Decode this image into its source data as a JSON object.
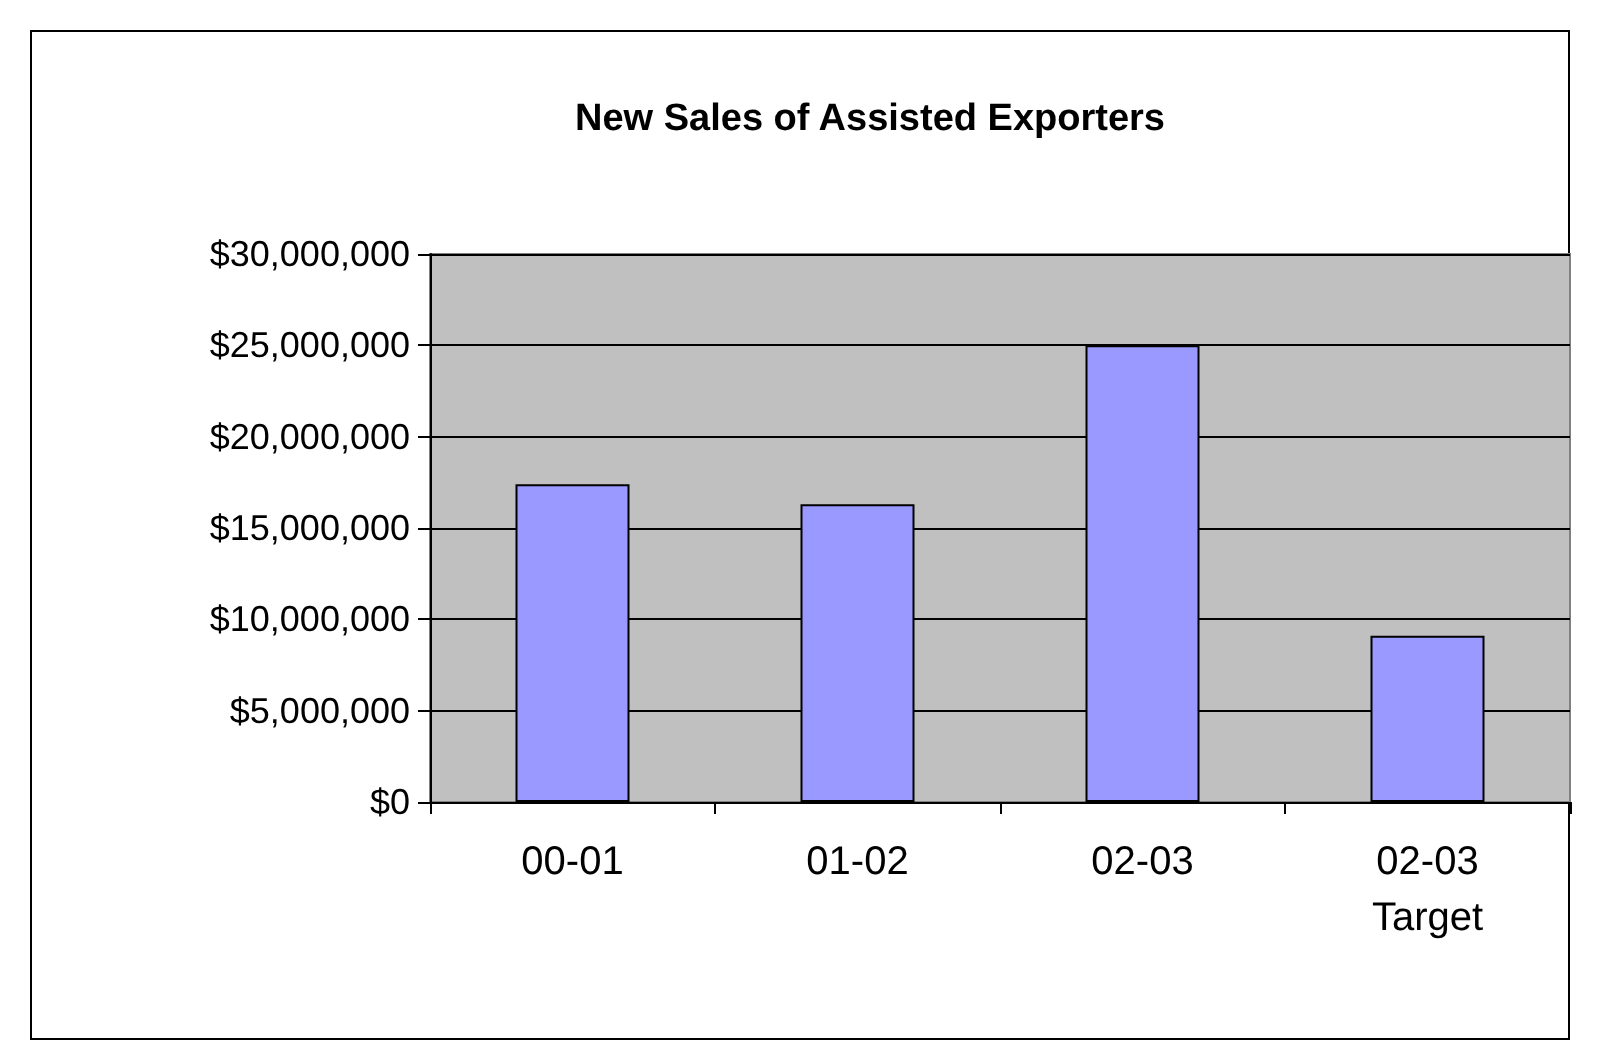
{
  "chart_data": {
    "type": "bar",
    "title": "New Sales of Assisted Exporters",
    "categories": [
      "00-01",
      "01-02",
      "02-03",
      "02-03 Target"
    ],
    "values": [
      17400000,
      16300000,
      25000000,
      9100000
    ],
    "color": "#9999ff",
    "ylim": [
      0,
      30000000
    ],
    "yticks": [
      {
        "value": 0,
        "label": "$0"
      },
      {
        "value": 5000000,
        "label": "$5,000,000"
      },
      {
        "value": 10000000,
        "label": "$10,000,000"
      },
      {
        "value": 15000000,
        "label": "$15,000,000"
      },
      {
        "value": 20000000,
        "label": "$20,000,000"
      },
      {
        "value": 25000000,
        "label": "$25,000,000"
      },
      {
        "value": 30000000,
        "label": "$30,000,000"
      }
    ],
    "grid": true
  }
}
